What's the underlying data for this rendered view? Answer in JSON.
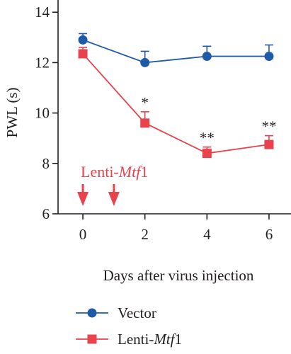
{
  "chart_data": {
    "type": "line",
    "ylabel": "PWL (s)",
    "xlabel": "Days after virus injection",
    "x": [
      0,
      2,
      4,
      6
    ],
    "xticks": [
      "0",
      "2",
      "4",
      "6"
    ],
    "yticks": [
      "6",
      "8",
      "10",
      "12",
      "14"
    ],
    "xlim": [
      -0.8,
      6.8
    ],
    "ylim": [
      6,
      14.4
    ],
    "grid": false,
    "legend_position": "bottom-left",
    "series": [
      {
        "name": "Vector",
        "name_prefix": "Vector",
        "name_italic": "",
        "name_suffix": "",
        "marker": "circle",
        "color": "#1f5aa6",
        "values": [
          12.9,
          12.0,
          12.25,
          12.25
        ],
        "errors": [
          0.25,
          0.45,
          0.4,
          0.45
        ]
      },
      {
        "name": "Lenti-Mtf1",
        "name_prefix": "Lenti-",
        "name_italic": "Mtf",
        "name_suffix": "1",
        "marker": "square",
        "color": "#e8424d",
        "values": [
          12.35,
          9.6,
          8.4,
          8.75
        ],
        "errors": [
          0.25,
          0.45,
          0.25,
          0.35
        ]
      }
    ],
    "significance": [
      {
        "x": 2,
        "label": "*"
      },
      {
        "x": 4,
        "label": "**"
      },
      {
        "x": 6,
        "label": "**"
      }
    ],
    "annotation": {
      "prefix": "Lenti-",
      "italic": "Mtf",
      "suffix": "1",
      "color": "#e8424d",
      "arrow_x": [
        0,
        1
      ]
    }
  }
}
